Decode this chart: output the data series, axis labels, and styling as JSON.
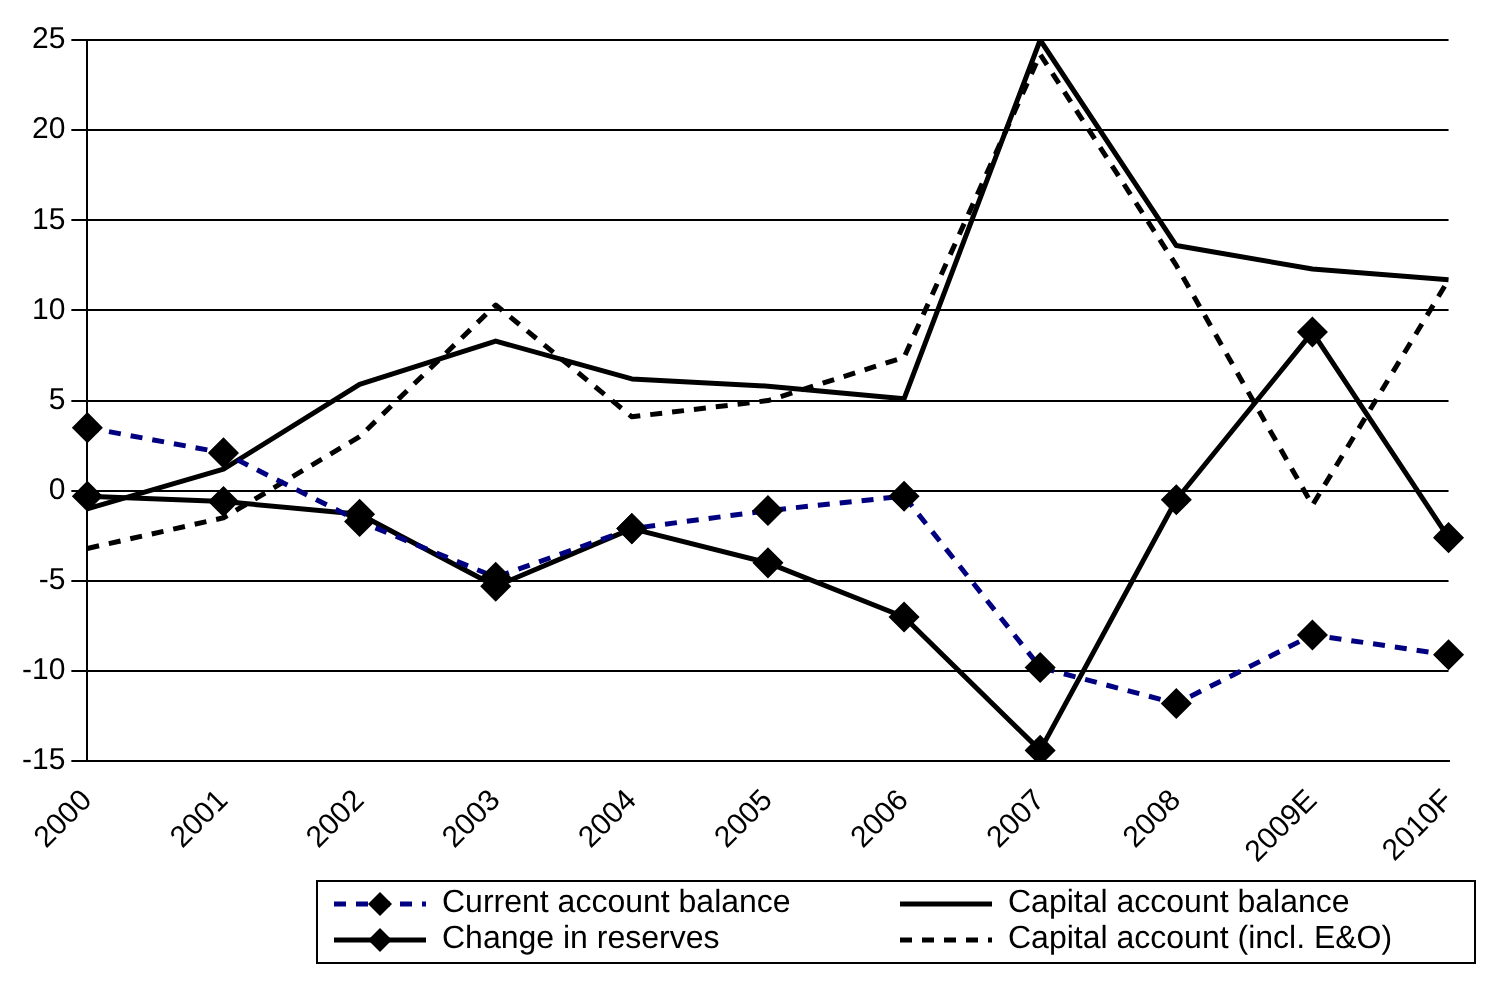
{
  "chart_data": {
    "type": "line",
    "categories": [
      "2000",
      "2001",
      "2002",
      "2003",
      "2004",
      "2005",
      "2006",
      "2007",
      "2008",
      "2009E",
      "2010F"
    ],
    "series": [
      {
        "name": "Current account balance",
        "color": "#000080",
        "line_style": "dashed",
        "marker": "diamond",
        "values": [
          3.5,
          2.1,
          -1.7,
          -4.8,
          -2.1,
          -1.1,
          -0.3,
          -9.8,
          -11.8,
          -8,
          -9.1
        ]
      },
      {
        "name": "Capital account balance",
        "color": "#000000",
        "line_style": "solid",
        "marker": "none",
        "values": [
          -1,
          1.2,
          5.9,
          8.3,
          6.2,
          5.8,
          5.1,
          25,
          13.6,
          12.3,
          11.7
        ]
      },
      {
        "name": "Change in reserves",
        "color": "#000000",
        "line_style": "solid",
        "marker": "diamond",
        "values": [
          -0.3,
          -0.6,
          -1.3,
          -5.3,
          -2.1,
          -4,
          -7,
          -14.4,
          -0.5,
          8.8,
          -2.6
        ]
      },
      {
        "name": "Capital account (incl. E&O)",
        "color": "#000000",
        "line_style": "dashed",
        "marker": "none",
        "values": [
          -3.2,
          -1.5,
          3,
          10.3,
          4.1,
          5,
          7.4,
          24.2,
          12.5,
          -0.8,
          11.7
        ]
      }
    ],
    "ylim": [
      -15,
      25
    ],
    "yticks": [
      -15,
      -10,
      -5,
      0,
      5,
      10,
      15,
      20,
      25
    ],
    "grid": "y",
    "legend": "bottom"
  }
}
